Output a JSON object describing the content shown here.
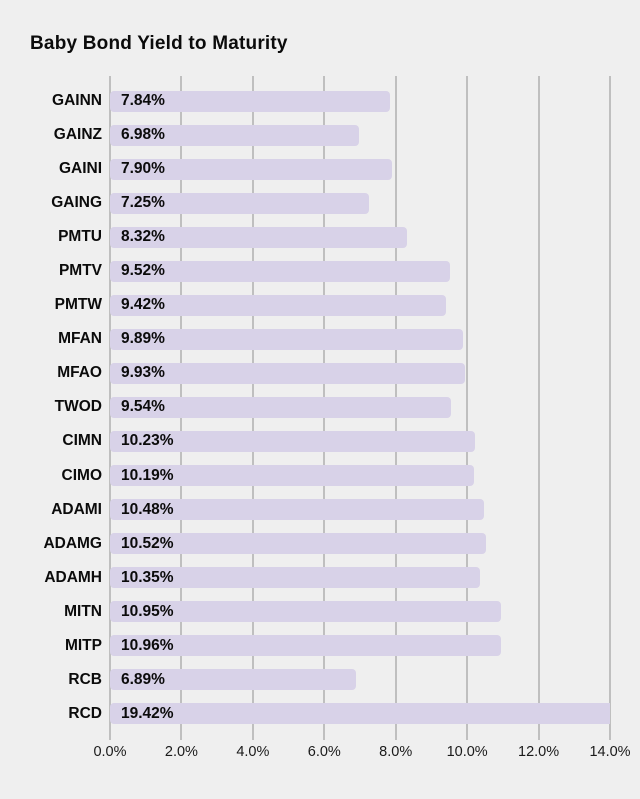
{
  "chart_data": {
    "type": "bar",
    "orientation": "horizontal",
    "title": "Baby Bond Yield to Maturity",
    "categories": [
      "GAINN",
      "GAINZ",
      "GAINI",
      "GAING",
      "PMTU",
      "PMTV",
      "PMTW",
      "MFAN",
      "MFAO",
      "TWOD",
      "CIMN",
      "CIMO",
      "ADAMI",
      "ADAMG",
      "ADAMH",
      "MITN",
      "MITP",
      "RCB",
      "RCD"
    ],
    "values": [
      7.84,
      6.98,
      7.9,
      7.25,
      8.32,
      9.52,
      9.42,
      9.89,
      9.93,
      9.54,
      10.23,
      10.19,
      10.48,
      10.52,
      10.35,
      10.95,
      10.96,
      6.89,
      19.42
    ],
    "value_labels": [
      "7.84%",
      "6.98%",
      "7.90%",
      "7.25%",
      "8.32%",
      "9.52%",
      "9.42%",
      "9.89%",
      "9.93%",
      "9.54%",
      "10.23%",
      "10.19%",
      "10.48%",
      "10.52%",
      "10.35%",
      "10.95%",
      "10.96%",
      "6.89%",
      "19.42%"
    ],
    "xlabel": "",
    "ylabel": "",
    "xlim": [
      0,
      14
    ],
    "x_ticks": [
      0,
      2,
      4,
      6,
      8,
      10,
      12,
      14
    ],
    "x_tick_labels": [
      "0.0%",
      "2.0%",
      "4.0%",
      "6.0%",
      "8.0%",
      "10.0%",
      "12.0%",
      "14.0%"
    ],
    "grid": "vertical",
    "legend": "none",
    "colors": {
      "background": "#efefef",
      "bar": "#d8d2e8",
      "gridline": "#bfbfbf",
      "text": "#0b0b0b"
    }
  }
}
